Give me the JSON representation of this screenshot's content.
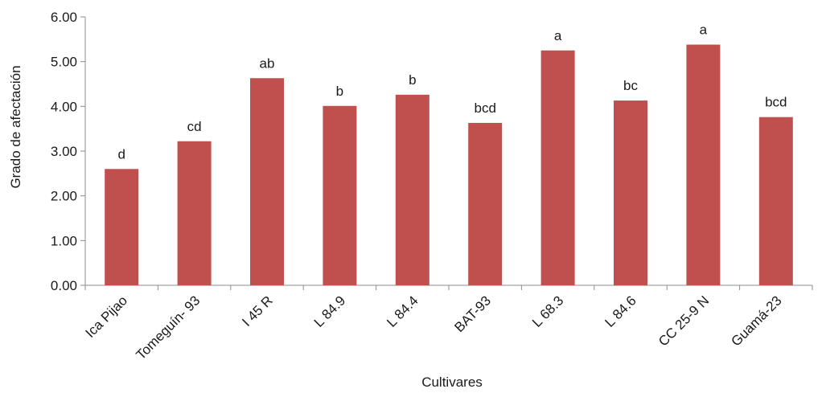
{
  "chart_data": {
    "type": "bar",
    "xlabel": "Cultivares",
    "ylabel": "Grado de afectación",
    "ylim": [
      0,
      6
    ],
    "yticks": [
      "0.00",
      "1.00",
      "2.00",
      "3.00",
      "4.00",
      "5.00",
      "6.00"
    ],
    "grid": false,
    "legend": "none",
    "bar_color": "#c0504d",
    "categories": [
      "Ica Pijao",
      "Tomeguín- 93",
      "I 45 R",
      "L 84.9",
      "L 84.4",
      "BAT-93",
      "L 68.3",
      "L 84.6",
      "CC 25-9 N",
      "Guamá-23"
    ],
    "values": [
      2.6,
      3.22,
      4.63,
      4.01,
      4.26,
      3.63,
      5.25,
      4.13,
      5.38,
      3.76
    ],
    "annotations": [
      "d",
      "cd",
      "ab",
      "b",
      "b",
      "bcd",
      "a",
      "bc",
      "a",
      "bcd"
    ]
  }
}
